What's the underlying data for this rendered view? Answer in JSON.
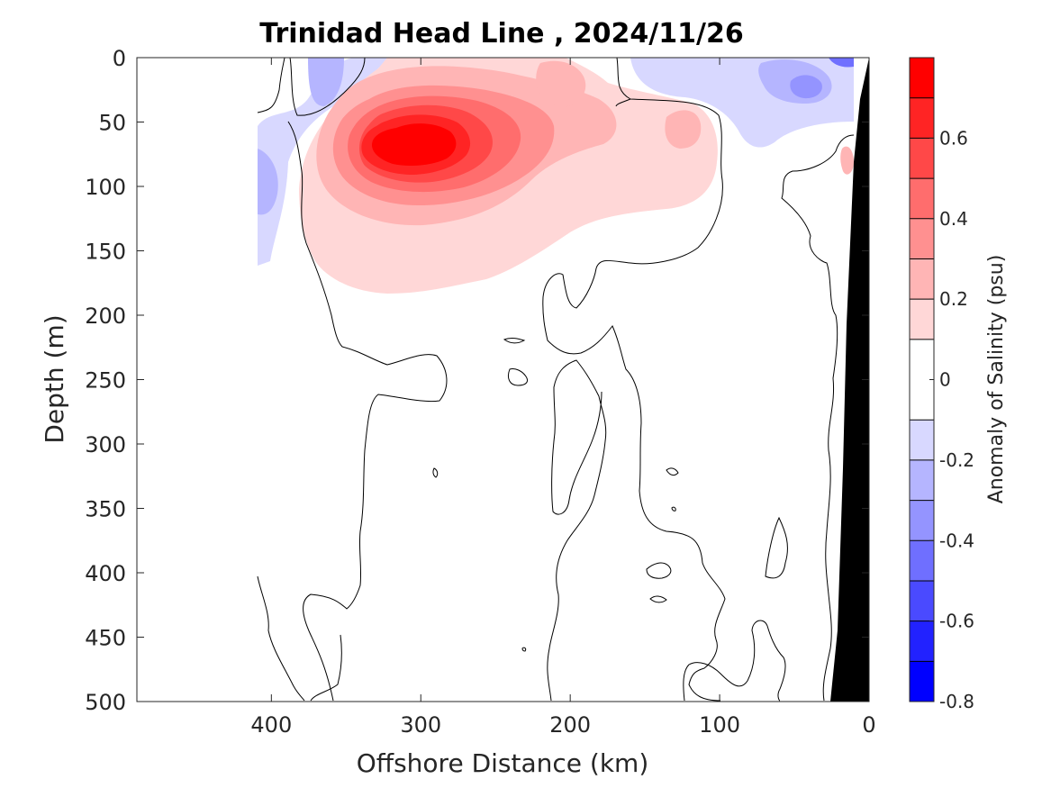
{
  "chart_data": {
    "type": "heatmap",
    "title": "Trinidad Head Line , 2024/11/26",
    "xlabel": "Offshore Distance (km)",
    "ylabel": "Depth (m)",
    "xlim": [
      490,
      0
    ],
    "ylim": [
      0,
      500
    ],
    "x_ticks": [
      400,
      300,
      200,
      100,
      0
    ],
    "y_ticks": [
      0,
      50,
      100,
      150,
      200,
      250,
      300,
      350,
      400,
      450,
      500
    ],
    "colorbar": {
      "label": "Anomaly of Salinity (psu)",
      "range": [
        -0.8,
        0.8
      ],
      "levels": [
        -0.8,
        -0.7,
        -0.6,
        -0.5,
        -0.4,
        -0.3,
        -0.2,
        -0.1,
        0.1,
        0.2,
        0.3,
        0.4,
        0.5,
        0.6,
        0.7,
        0.8
      ],
      "tick_values": [
        -0.8,
        -0.6,
        -0.4,
        -0.2,
        0,
        0.2,
        0.4,
        0.6
      ],
      "tick_labels": [
        "-0.8",
        "-0.6",
        "-0.4",
        "-0.2",
        "0",
        "0.2",
        "0.4",
        "0.6"
      ],
      "colors": [
        "#0000ff",
        "#2222ff",
        "#4a4aff",
        "#6f6fff",
        "#9494ff",
        "#b5b5ff",
        "#d8d8ff",
        "#ffffff",
        "#ffd7d7",
        "#ffb5b5",
        "#ff9090",
        "#ff6d6d",
        "#ff4848",
        "#ff2424",
        "#ff0000"
      ]
    },
    "features": [
      {
        "name": "positive salinity anomaly core",
        "x": 310,
        "depth": 85,
        "max_value": 0.8
      },
      {
        "name": "negative anomaly near surface offshore",
        "x": 350,
        "depth": 20,
        "value": -0.2
      },
      {
        "name": "negative anomaly near surface inshore",
        "x": 50,
        "depth": 20,
        "value": -0.3
      },
      {
        "name": "seafloor / land mask",
        "x": 0,
        "depth": 500
      }
    ]
  }
}
